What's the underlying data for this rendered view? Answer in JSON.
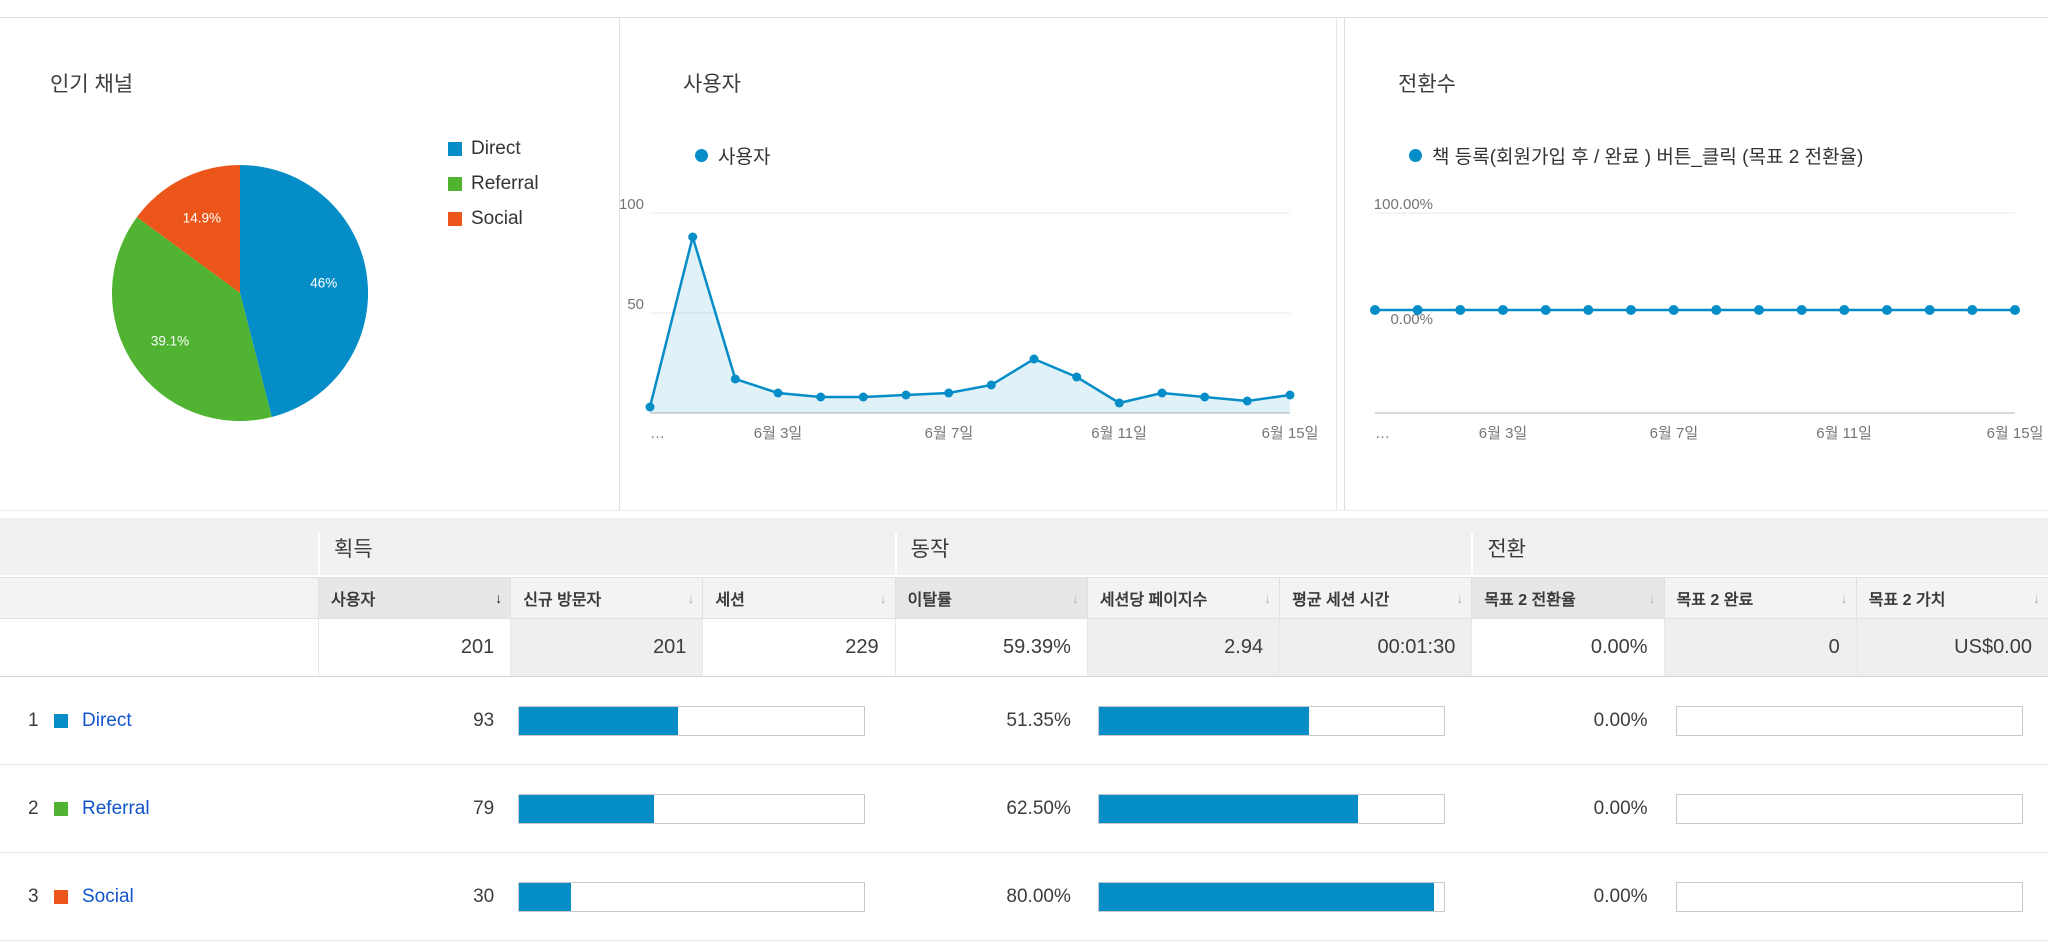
{
  "colors": {
    "blue": "#058dc7",
    "green": "#50b432",
    "orange": "#ed561b",
    "link": "#1155cc"
  },
  "cards": {
    "channels": {
      "title": "인기 채널",
      "legend": [
        {
          "label": "Direct",
          "color": "#058dc7"
        },
        {
          "label": "Referral",
          "color": "#50b432"
        },
        {
          "label": "Social",
          "color": "#ed561b"
        }
      ],
      "chart_data": {
        "type": "pie",
        "categories": [
          "Direct",
          "Referral",
          "Social"
        ],
        "values": [
          46,
          39.1,
          14.9
        ],
        "slice_labels": [
          "46%",
          "39.1%",
          "14.9%"
        ]
      }
    },
    "users": {
      "title": "사용자",
      "legend_label": "사용자",
      "chart_data": {
        "type": "area",
        "x_tick_labels": [
          "…",
          "6월 3일",
          "6월 7일",
          "6월 11일",
          "6월 15일"
        ],
        "tick_positions": [
          0,
          0.2,
          0.467,
          0.733,
          1
        ],
        "y_axis_labels": [
          "100",
          "50"
        ],
        "ylim": [
          0,
          100
        ],
        "values": [
          3,
          88,
          17,
          10,
          8,
          8,
          9,
          10,
          14,
          27,
          18,
          5,
          10,
          8,
          6,
          9
        ]
      }
    },
    "conversions": {
      "title": "전환수",
      "legend_label": "책 등록(회원가입 후 / 완료 ) 버튼_클릭 (목표 2 전환율)",
      "chart_data": {
        "type": "line",
        "x_tick_labels": [
          "…",
          "6월 3일",
          "6월 7일",
          "6월 11일",
          "6월 15일"
        ],
        "tick_positions": [
          0,
          0.2,
          0.467,
          0.733,
          1
        ],
        "y_axis_labels": [
          "100.00%",
          "0.00%"
        ],
        "ylim": [
          0,
          100
        ],
        "values": [
          0,
          0,
          0,
          0,
          0,
          0,
          0,
          0,
          0,
          0,
          0,
          0,
          0,
          0,
          0,
          0
        ]
      }
    }
  },
  "table": {
    "sort_arrow": "↓",
    "groups": [
      {
        "label": "획득"
      },
      {
        "label": "동작"
      },
      {
        "label": "전환"
      }
    ],
    "columns": [
      {
        "label": "사용자"
      },
      {
        "label": "신규 방문자"
      },
      {
        "label": "세션"
      },
      {
        "label": "이탈률"
      },
      {
        "label": "세션당 페이지수"
      },
      {
        "label": "평균 세션 시간"
      },
      {
        "label": "목표 2 전환율"
      },
      {
        "label": "목표 2 완료"
      },
      {
        "label": "목표 2 가치"
      }
    ],
    "summary": {
      "users": "201",
      "new_users": "201",
      "sessions": "229",
      "bounce_rate": "59.39%",
      "pages_per_session": "2.94",
      "avg_session_duration": "00:01:30",
      "goal2_rate": "0.00%",
      "goal2_completions": "0",
      "goal2_value": "US$0.00"
    },
    "rows": [
      {
        "rank": "1",
        "channel": "Direct",
        "color": "#058dc7",
        "users": "93",
        "acq_bar_pct": 46,
        "bounce_rate": "51.35%",
        "behavior_bar_pct": 61,
        "goal2_rate": "0.00%",
        "goal2_bar_pct": 0
      },
      {
        "rank": "2",
        "channel": "Referral",
        "color": "#50b432",
        "users": "79",
        "acq_bar_pct": 39,
        "bounce_rate": "62.50%",
        "behavior_bar_pct": 75,
        "goal2_rate": "0.00%",
        "goal2_bar_pct": 0
      },
      {
        "rank": "3",
        "channel": "Social",
        "color": "#ed561b",
        "users": "30",
        "acq_bar_pct": 15,
        "bounce_rate": "80.00%",
        "behavior_bar_pct": 97,
        "goal2_rate": "0.00%",
        "goal2_bar_pct": 0
      }
    ]
  }
}
